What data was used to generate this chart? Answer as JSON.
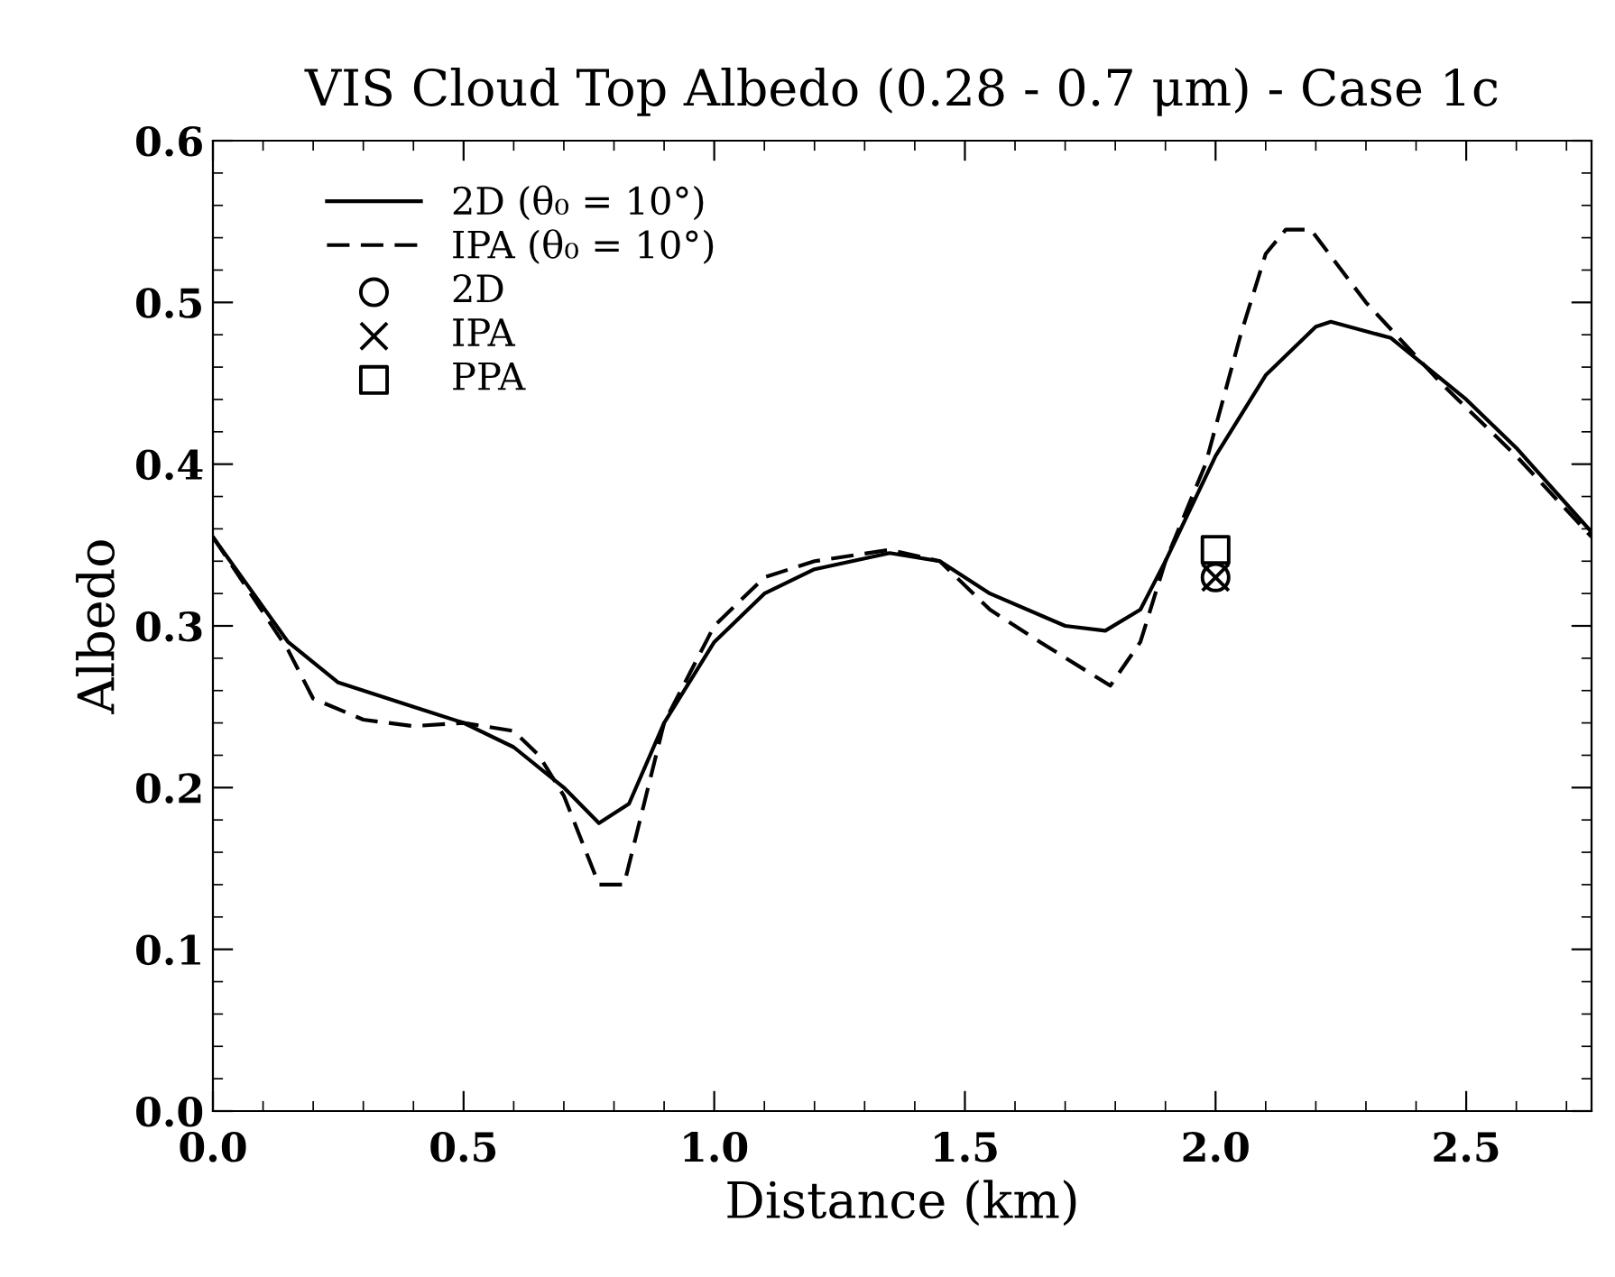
{
  "chart_data": {
    "type": "line",
    "title": "VIS Cloud Top Albedo (0.28 - 0.7 μm) - Case 1c",
    "xlabel": "Distance (km)",
    "ylabel": "Albedo",
    "xlim": [
      0,
      2.75
    ],
    "ylim": [
      0,
      0.6
    ],
    "xticks": [
      {
        "value": 0,
        "label": "0.0"
      },
      0.5,
      {
        "value": 1,
        "label": "1.0"
      },
      1.5,
      {
        "value": 2,
        "label": "2.0"
      },
      2.5
    ],
    "yticks": [
      {
        "value": 0,
        "label": "0.0"
      },
      0.1,
      0.2,
      0.3,
      0.4,
      0.5,
      0.6
    ],
    "grid": false,
    "legend": "top left",
    "series": [
      {
        "name": "2D (θ₀ = 10°)",
        "line_style": "solid",
        "marker": "none",
        "color": "#000000",
        "x": [
          0,
          0.15,
          0.25,
          0.4,
          0.5,
          0.6,
          0.7,
          0.77,
          0.83,
          0.9,
          1.0,
          1.1,
          1.2,
          1.35,
          1.45,
          1.55,
          1.7,
          1.78,
          1.85,
          1.9,
          2.0,
          2.1,
          2.2,
          2.23,
          2.35,
          2.5,
          2.6,
          2.75
        ],
        "values": [
          0.355,
          0.29,
          0.265,
          0.25,
          0.24,
          0.225,
          0.2,
          0.178,
          0.19,
          0.24,
          0.29,
          0.32,
          0.335,
          0.345,
          0.34,
          0.32,
          0.3,
          0.297,
          0.31,
          0.34,
          0.405,
          0.455,
          0.485,
          0.488,
          0.478,
          0.44,
          0.41,
          0.358
        ]
      },
      {
        "name": "IPA (θ₀ = 10°)",
        "line_style": "dashed",
        "marker": "none",
        "color": "#000000",
        "x": [
          0,
          0.15,
          0.2,
          0.3,
          0.4,
          0.5,
          0.6,
          0.65,
          0.7,
          0.77,
          0.82,
          0.9,
          1.0,
          1.1,
          1.2,
          1.35,
          1.45,
          1.55,
          1.65,
          1.79,
          1.85,
          1.9,
          1.98,
          2.05,
          2.1,
          2.14,
          2.19,
          2.3,
          2.45,
          2.6,
          2.75
        ],
        "values": [
          0.355,
          0.285,
          0.255,
          0.242,
          0.238,
          0.24,
          0.235,
          0.22,
          0.195,
          0.14,
          0.14,
          0.24,
          0.3,
          0.33,
          0.34,
          0.347,
          0.34,
          0.31,
          0.29,
          0.263,
          0.29,
          0.34,
          0.4,
          0.48,
          0.53,
          0.545,
          0.545,
          0.5,
          0.45,
          0.405,
          0.355
        ]
      },
      {
        "name": "2D",
        "type": "scatter",
        "marker": "circle",
        "color": "#000000",
        "x": [
          2.0
        ],
        "values": [
          0.33
        ]
      },
      {
        "name": "IPA",
        "type": "scatter",
        "marker": "cross",
        "color": "#000000",
        "x": [
          2.0
        ],
        "values": [
          0.33
        ]
      },
      {
        "name": "PPA",
        "type": "scatter",
        "marker": "square",
        "color": "#000000",
        "x": [
          2.0
        ],
        "values": [
          0.347
        ]
      }
    ]
  }
}
